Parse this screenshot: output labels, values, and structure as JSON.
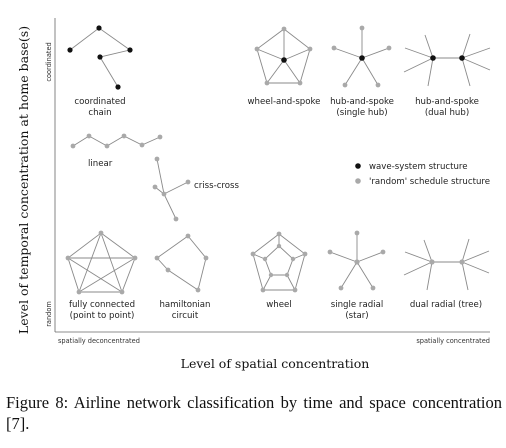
{
  "figure": {
    "y_axis_title": "Level of temporal concentration at home base(s)",
    "y_axis_top_label": "coordinated",
    "y_axis_bottom_label": "random",
    "x_axis_title": "Level of spatial concentration",
    "x_axis_left_label": "spatially deconcentrated",
    "x_axis_right_label": "spatially concentrated",
    "legend": {
      "wave_label": "wave-system structure",
      "random_label": "'random' schedule structure",
      "wave_color": "#111111",
      "random_color": "#a9a9a9"
    },
    "networks": {
      "coordinated_chain": [
        "coordinated",
        "chain"
      ],
      "wheel_and_spoke": [
        "wheel-and-spoke"
      ],
      "hub_spoke_single": [
        "hub-and-spoke",
        "(single hub)"
      ],
      "hub_spoke_dual": [
        "hub-and-spoke",
        "(dual hub)"
      ],
      "linear": [
        "linear"
      ],
      "criss_cross": [
        "criss-cross"
      ],
      "fully_connected": [
        "fully connected",
        "(point to point)"
      ],
      "hamiltonian": [
        "hamiltonian",
        "circuit"
      ],
      "wheel": [
        "wheel"
      ],
      "single_radial": [
        "single radial",
        "(star)"
      ],
      "dual_radial": [
        "dual radial (tree)"
      ]
    }
  },
  "caption": {
    "label": "Figure 8:",
    "text": " Airline network classification by time and space concentration [7]."
  }
}
